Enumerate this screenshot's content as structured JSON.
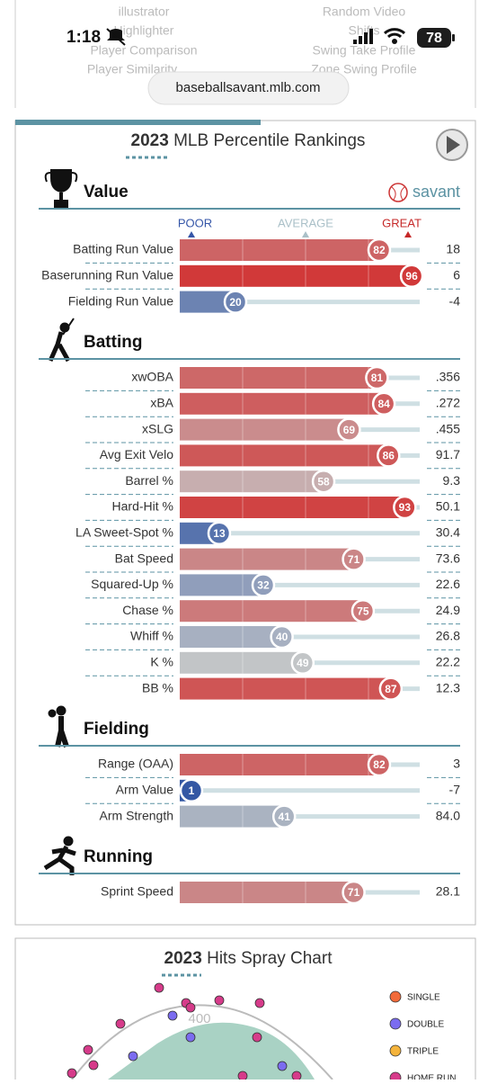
{
  "status_bar": {
    "time": "1:18",
    "battery": "78"
  },
  "background_menu": [
    "illustrator",
    "Random Video",
    "Highlighter",
    "Shifts",
    "Player Comparison",
    "Swing Take Profile",
    "Player Similarity",
    "Zone Swing Profile"
  ],
  "url": "baseballsavant.mlb.com",
  "percentile_rankings": {
    "title_year": "2023",
    "title": "MLB Percentile Rankings",
    "brand": "savant",
    "scale_labels": [
      "POOR",
      "AVERAGE",
      "GREAT"
    ],
    "sections": [
      {
        "name": "Value",
        "rows": [
          {
            "label": "Batting Run Value",
            "percentile": 82,
            "value": "18"
          },
          {
            "label": "Baserunning Run Value",
            "percentile": 96,
            "value": "6"
          },
          {
            "label": "Fielding Run Value",
            "percentile": 20,
            "value": "-4"
          }
        ]
      },
      {
        "name": "Batting",
        "rows": [
          {
            "label": "xwOBA",
            "percentile": 81,
            "value": ".356"
          },
          {
            "label": "xBA",
            "percentile": 84,
            "value": ".272"
          },
          {
            "label": "xSLG",
            "percentile": 69,
            "value": ".455"
          },
          {
            "label": "Avg Exit Velo",
            "percentile": 86,
            "value": "91.7"
          },
          {
            "label": "Barrel %",
            "percentile": 58,
            "value": "9.3"
          },
          {
            "label": "Hard-Hit %",
            "percentile": 93,
            "value": "50.1"
          },
          {
            "label": "LA Sweet-Spot %",
            "percentile": 13,
            "value": "30.4"
          },
          {
            "label": "Bat Speed",
            "percentile": 71,
            "value": "73.6"
          },
          {
            "label": "Squared-Up %",
            "percentile": 32,
            "value": "22.6"
          },
          {
            "label": "Chase %",
            "percentile": 75,
            "value": "24.9"
          },
          {
            "label": "Whiff %",
            "percentile": 40,
            "value": "26.8"
          },
          {
            "label": "K %",
            "percentile": 49,
            "value": "22.2"
          },
          {
            "label": "BB %",
            "percentile": 87,
            "value": "12.3"
          }
        ]
      },
      {
        "name": "Fielding",
        "rows": [
          {
            "label": "Range (OAA)",
            "percentile": 82,
            "value": "3"
          },
          {
            "label": "Arm Value",
            "percentile": 1,
            "value": "-7"
          },
          {
            "label": "Arm Strength",
            "percentile": 41,
            "value": "84.0"
          }
        ]
      },
      {
        "name": "Running",
        "rows": [
          {
            "label": "Sprint Speed",
            "percentile": 71,
            "value": "28.1"
          }
        ]
      }
    ]
  },
  "spray_chart": {
    "title_year": "2023",
    "title": "Hits Spray Chart",
    "distance_label": "400",
    "legend": [
      {
        "name": "SINGLE",
        "color": "#f26b3a"
      },
      {
        "name": "DOUBLE",
        "color": "#7b6cf0"
      },
      {
        "name": "TRIPLE",
        "color": "#f5b43c"
      },
      {
        "name": "HOME RUN",
        "color": "#d63b8a"
      }
    ]
  }
}
